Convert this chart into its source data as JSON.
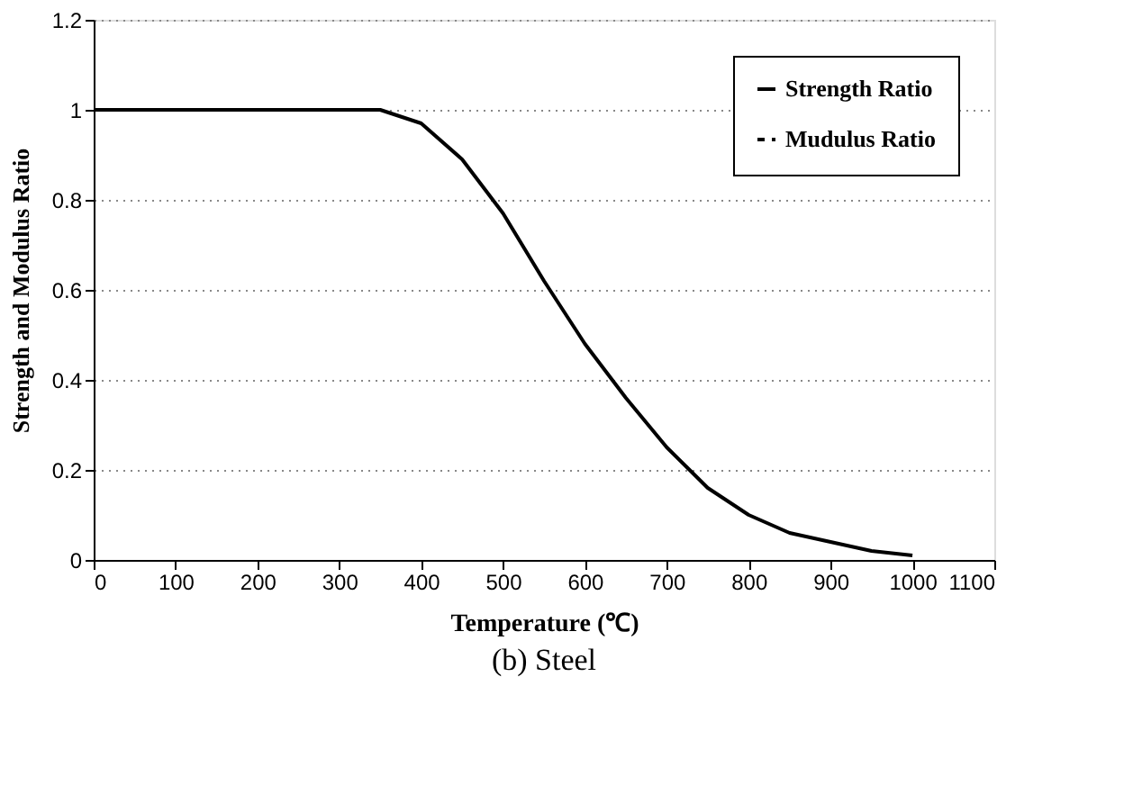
{
  "chart_data": {
    "type": "line",
    "xlabel": "Temperature (℃)",
    "ylabel": "Strength and Modulus Ratio",
    "annotations": [
      "(b) Steel"
    ],
    "x": [
      0,
      350,
      400,
      450,
      500,
      550,
      600,
      650,
      700,
      750,
      800,
      850,
      900,
      950,
      1000
    ],
    "series": [
      {
        "name": "Strength Ratio",
        "color": "#000000",
        "line_style": "solid",
        "values": [
          1,
          1,
          0.97,
          0.89,
          0.77,
          0.62,
          0.48,
          0.36,
          0.25,
          0.16,
          0.1,
          0.06,
          0.04,
          0.02,
          0.01
        ]
      },
      {
        "name": "Mudulus Ratio",
        "color": "#000000",
        "line_style": "dashed",
        "values": [
          null,
          null,
          null,
          null,
          null,
          null,
          null,
          null,
          null,
          null,
          null,
          null,
          null,
          null,
          null
        ]
      }
    ],
    "xlim": [
      0,
      1100
    ],
    "xticks": [
      0,
      100,
      200,
      300,
      400,
      500,
      600,
      700,
      800,
      900,
      1000,
      1100
    ],
    "ylim": [
      0,
      1.2
    ],
    "yticks": [
      0,
      0.2,
      0.4,
      0.6,
      0.8,
      1,
      1.2
    ],
    "grid": "y",
    "legend": "top right",
    "marker": "none"
  }
}
